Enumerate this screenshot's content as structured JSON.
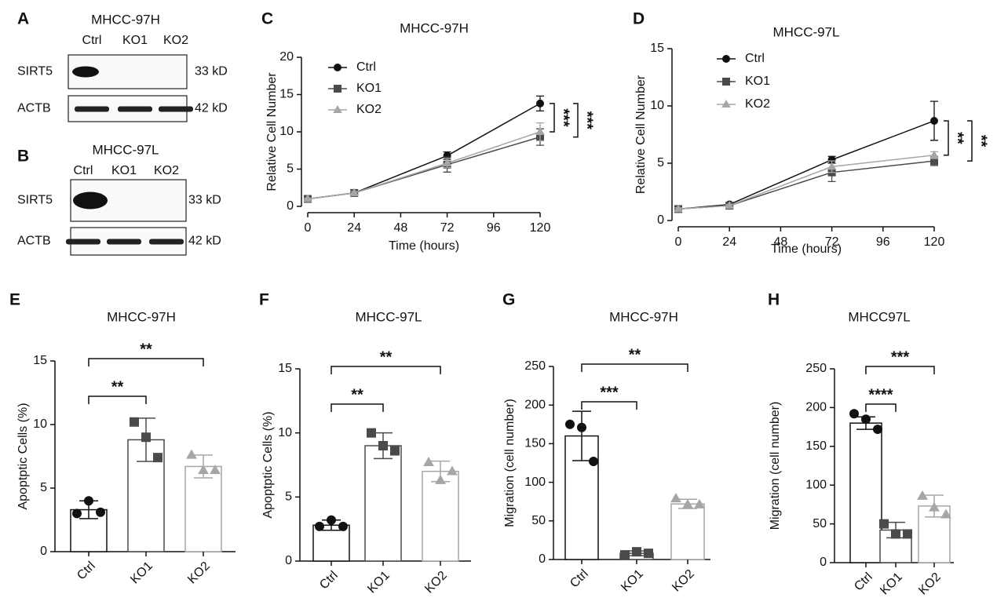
{
  "blots": [
    {
      "panel": "A",
      "title": "MHCC-97H",
      "lanes": [
        "Ctrl",
        "KO1",
        "KO2"
      ],
      "rows": [
        {
          "name": "SIRT5",
          "size": "33 kD"
        },
        {
          "name": "ACTB",
          "size": "42 kD"
        }
      ]
    },
    {
      "panel": "B",
      "title": "MHCC-97L",
      "lanes": [
        "Ctrl",
        "KO1",
        "KO2"
      ],
      "rows": [
        {
          "name": "SIRT5",
          "size": "33 kD"
        },
        {
          "name": "ACTB",
          "size": "42 kD"
        }
      ]
    }
  ],
  "chart_data": [
    {
      "type": "line",
      "panel": "C",
      "title": "MHCC-97H",
      "ylabel": "Relative Cell Number",
      "xlabel": "Time (hours)",
      "x": [
        0,
        24,
        72,
        120
      ],
      "xlim": [
        0,
        120
      ],
      "xticks": [
        0,
        24,
        48,
        72,
        96,
        120
      ],
      "ylim": [
        0,
        20
      ],
      "yticks": [
        0,
        5,
        10,
        15,
        20
      ],
      "series": [
        {
          "name": "Ctrl",
          "color": "#111111",
          "marker": "circle",
          "values": [
            1,
            1.8,
            6.8,
            13.8
          ],
          "errors": [
            0.1,
            0.2,
            0.5,
            1.0
          ]
        },
        {
          "name": "KO1",
          "color": "#4a4a4a",
          "marker": "square",
          "values": [
            1,
            1.8,
            5.6,
            9.3
          ],
          "errors": [
            0.1,
            0.2,
            1.0,
            1.1
          ]
        },
        {
          "name": "KO2",
          "color": "#a6a6a6",
          "marker": "triangle",
          "values": [
            1,
            1.8,
            5.8,
            10.0
          ],
          "errors": [
            0.1,
            0.2,
            0.6,
            1.2
          ]
        }
      ],
      "annotations": [
        {
          "text": "***",
          "between": [
            "Ctrl",
            "KO2"
          ]
        },
        {
          "text": "***",
          "between": [
            "Ctrl",
            "KO1"
          ]
        }
      ]
    },
    {
      "type": "line",
      "panel": "D",
      "title": "MHCC-97L",
      "ylabel": "Relative Cell Number",
      "xlabel": "Time (hours)",
      "x": [
        0,
        24,
        72,
        120
      ],
      "xlim": [
        0,
        120
      ],
      "xticks": [
        0,
        24,
        48,
        72,
        96,
        120
      ],
      "ylim": [
        0,
        15
      ],
      "yticks": [
        0,
        5,
        10,
        15
      ],
      "series": [
        {
          "name": "Ctrl",
          "color": "#111111",
          "marker": "circle",
          "values": [
            1,
            1.4,
            5.3,
            8.7
          ],
          "errors": [
            0.1,
            0.1,
            0.3,
            1.7
          ]
        },
        {
          "name": "KO1",
          "color": "#4a4a4a",
          "marker": "square",
          "values": [
            1,
            1.3,
            4.2,
            5.2
          ],
          "errors": [
            0.1,
            0.1,
            0.8,
            0.4
          ]
        },
        {
          "name": "KO2",
          "color": "#a6a6a6",
          "marker": "triangle",
          "values": [
            1,
            1.3,
            4.7,
            5.7
          ],
          "errors": [
            0.1,
            0.1,
            0.5,
            0.3
          ]
        }
      ],
      "annotations": [
        {
          "text": "**",
          "between": [
            "Ctrl",
            "KO2"
          ]
        },
        {
          "text": "**",
          "between": [
            "Ctrl",
            "KO1"
          ]
        }
      ]
    },
    {
      "type": "bar",
      "panel": "E",
      "title": "MHCC-97H",
      "ylabel": "Apoptptic Cells (%)",
      "categories": [
        "Ctrl",
        "KO1",
        "KO2"
      ],
      "colors": [
        "#111111",
        "#4a4a4a",
        "#a6a6a6"
      ],
      "markers": [
        "circle",
        "square",
        "triangle"
      ],
      "values": [
        3.3,
        8.8,
        6.7
      ],
      "errors": [
        0.7,
        1.7,
        0.9
      ],
      "points": [
        [
          3.0,
          4.0,
          3.1
        ],
        [
          10.2,
          9.0,
          7.4
        ],
        [
          7.6,
          6.4,
          6.4
        ]
      ],
      "ylim": [
        0,
        15
      ],
      "yticks": [
        0,
        5,
        10,
        15
      ],
      "annotations": [
        {
          "text": "**",
          "between": [
            "Ctrl",
            "KO1"
          ]
        },
        {
          "text": "**",
          "between": [
            "Ctrl",
            "KO2"
          ]
        }
      ]
    },
    {
      "type": "bar",
      "panel": "F",
      "title": "MHCC-97L",
      "ylabel": "Apoptptic Cells (%)",
      "categories": [
        "Ctrl",
        "KO1",
        "KO2"
      ],
      "colors": [
        "#111111",
        "#4a4a4a",
        "#a6a6a6"
      ],
      "markers": [
        "circle",
        "square",
        "triangle"
      ],
      "values": [
        2.8,
        9.0,
        7.0
      ],
      "errors": [
        0.4,
        1.0,
        0.8
      ],
      "points": [
        [
          2.7,
          3.2,
          2.7
        ],
        [
          10.0,
          9.0,
          8.6
        ],
        [
          7.7,
          6.3,
          7.0
        ]
      ],
      "ylim": [
        0,
        15
      ],
      "yticks": [
        0,
        5,
        10,
        15
      ],
      "annotations": [
        {
          "text": "**",
          "between": [
            "Ctrl",
            "KO1"
          ]
        },
        {
          "text": "**",
          "between": [
            "Ctrl",
            "KO2"
          ]
        }
      ]
    },
    {
      "type": "bar",
      "panel": "G",
      "title": "MHCC-97H",
      "ylabel": "Migration (cell number)",
      "categories": [
        "Ctrl",
        "KO1",
        "KO2"
      ],
      "colors": [
        "#111111",
        "#4a4a4a",
        "#a6a6a6"
      ],
      "markers": [
        "circle",
        "square",
        "triangle"
      ],
      "values": [
        160,
        8,
        72
      ],
      "errors": [
        32,
        3,
        6
      ],
      "points": [
        [
          175,
          171,
          127
        ],
        [
          6,
          10,
          8
        ],
        [
          79,
          71,
          71
        ]
      ],
      "ylim": [
        0,
        250
      ],
      "yticks": [
        0,
        50,
        100,
        150,
        200,
        250
      ],
      "annotations": [
        {
          "text": "***",
          "between": [
            "Ctrl",
            "KO1"
          ]
        },
        {
          "text": "**",
          "between": [
            "Ctrl",
            "KO2"
          ]
        }
      ]
    },
    {
      "type": "bar",
      "panel": "H",
      "title": "MHCC97L",
      "ylabel": "Migration (cell number)",
      "categories": [
        "Ctrl",
        "KO1",
        "KO2"
      ],
      "colors": [
        "#111111",
        "#4a4a4a",
        "#a6a6a6"
      ],
      "markers": [
        "circle",
        "square",
        "triangle"
      ],
      "values": [
        180,
        42,
        73
      ],
      "errors": [
        8,
        10,
        14
      ],
      "points": [
        [
          192,
          185,
          172
        ],
        [
          50,
          37,
          37
        ],
        [
          86,
          71,
          62
        ]
      ],
      "ylim": [
        0,
        250
      ],
      "yticks": [
        0,
        50,
        100,
        150,
        200,
        250
      ],
      "annotations": [
        {
          "text": "****",
          "between": [
            "Ctrl",
            "KO1"
          ]
        },
        {
          "text": "***",
          "between": [
            "Ctrl",
            "KO2"
          ]
        }
      ]
    }
  ]
}
